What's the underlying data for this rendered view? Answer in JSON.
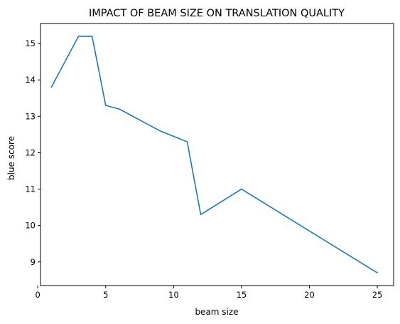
{
  "chart_data": {
    "type": "line",
    "title": "IMPACT OF BEAM SIZE ON TRANSLATION QUALITY",
    "xlabel": "beam size",
    "ylabel": "blue score",
    "xlim": [
      0.2,
      26.2
    ],
    "ylim": [
      8.35,
      15.55
    ],
    "xticks": [
      0,
      5,
      10,
      15,
      20,
      25
    ],
    "yticks": [
      9,
      10,
      11,
      12,
      13,
      14,
      15
    ],
    "grid": false,
    "series": [
      {
        "color": "#1f77b4",
        "x": [
          1,
          3,
          4,
          5,
          6,
          9,
          11,
          12,
          15,
          25
        ],
        "y": [
          13.8,
          15.2,
          15.2,
          13.3,
          13.2,
          12.6,
          12.3,
          10.3,
          11.0,
          8.7
        ]
      }
    ]
  }
}
